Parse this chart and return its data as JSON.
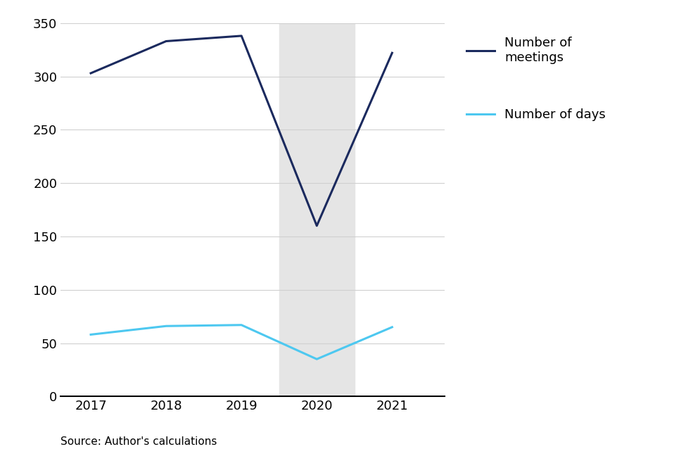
{
  "years": [
    2017,
    2018,
    2019,
    2020,
    2021
  ],
  "meetings": [
    303,
    333,
    338,
    160,
    322
  ],
  "days": [
    58,
    66,
    67,
    35,
    65
  ],
  "meetings_color": "#1b2a5e",
  "days_color": "#4dc8f0",
  "shade_color": "#e5e5e5",
  "shade_xmin": 2019.5,
  "shade_xmax": 2020.5,
  "ylim": [
    0,
    350
  ],
  "yticks": [
    0,
    50,
    100,
    150,
    200,
    250,
    300,
    350
  ],
  "xlim_left": 2016.6,
  "xlim_right": 2021.7,
  "line_width": 2.2,
  "legend_meetings": "Number of\nmeetings",
  "legend_days": "Number of days",
  "source_text": "Source: Author's calculations",
  "background_color": "#ffffff",
  "grid_color": "#d0d0d0",
  "tick_fontsize": 13,
  "legend_fontsize": 13
}
